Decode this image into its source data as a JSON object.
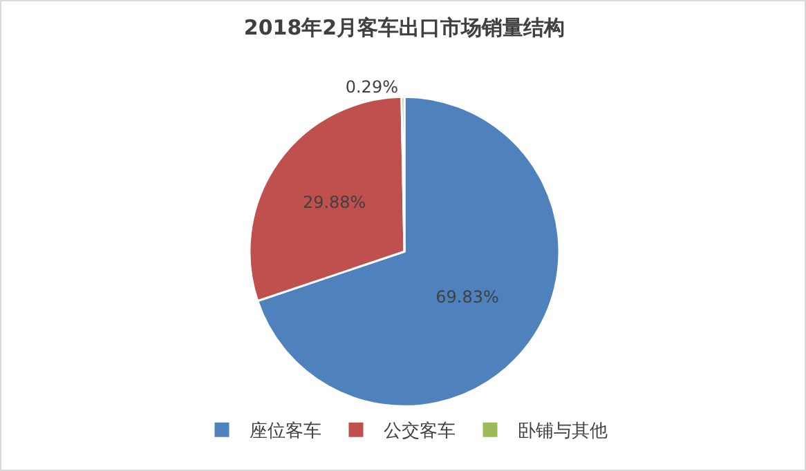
{
  "chart_data": {
    "type": "pie",
    "title": "2018年2月客车出口市场销量结构",
    "categories": [
      "座位客车",
      "公交客车",
      "卧铺与其他"
    ],
    "values": [
      69.83,
      29.88,
      0.29
    ],
    "colors": [
      "#4f81bd",
      "#c0504d",
      "#9bbb59"
    ],
    "value_labels": [
      "69.83%",
      "29.88%",
      "0.29%"
    ],
    "legend": "bottom"
  }
}
